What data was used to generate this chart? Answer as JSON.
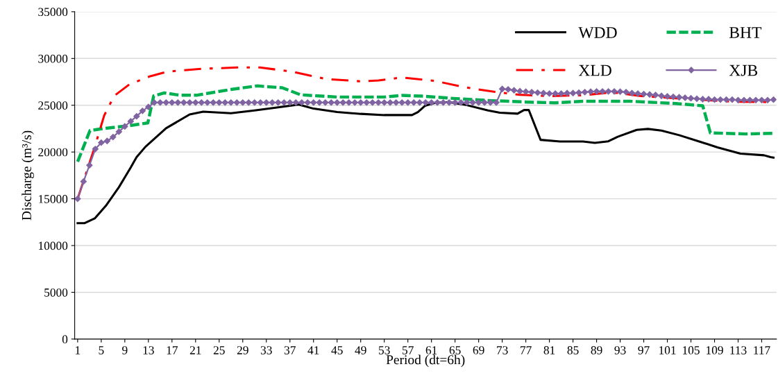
{
  "chart_data": {
    "type": "line",
    "xlabel": "Period (dt=6h)",
    "ylabel": "Discharge (m³/s)",
    "x": [
      1,
      2,
      3,
      4,
      5,
      6,
      7,
      8,
      9,
      10,
      11,
      12,
      13,
      14,
      15,
      16,
      17,
      18,
      19,
      20,
      21,
      22,
      23,
      24,
      25,
      26,
      27,
      28,
      29,
      30,
      31,
      32,
      33,
      34,
      35,
      36,
      37,
      38,
      39,
      40,
      41,
      42,
      43,
      44,
      45,
      46,
      47,
      48,
      49,
      50,
      51,
      52,
      53,
      54,
      55,
      56,
      57,
      58,
      59,
      60,
      61,
      62,
      63,
      64,
      65,
      66,
      67,
      68,
      69,
      70,
      71,
      72,
      73,
      74,
      75,
      76,
      77,
      78,
      79,
      80,
      81,
      82,
      83,
      84,
      85,
      86,
      87,
      88,
      89,
      90,
      91,
      92,
      93,
      94,
      95,
      96,
      97,
      98,
      99,
      100,
      101,
      102,
      103,
      104,
      105,
      106,
      107,
      108,
      109,
      110,
      111,
      112,
      113,
      114,
      115,
      116,
      117,
      118,
      119
    ],
    "xlim": [
      0.5,
      119.5
    ],
    "xticks": [
      1,
      5,
      9,
      13,
      17,
      21,
      25,
      29,
      33,
      37,
      41,
      45,
      49,
      53,
      57,
      61,
      65,
      69,
      73,
      77,
      81,
      85,
      89,
      93,
      97,
      101,
      105,
      109,
      113,
      117
    ],
    "ylim": [
      0,
      35000
    ],
    "yticks": [
      0,
      5000,
      10000,
      15000,
      20000,
      25000,
      30000,
      35000
    ],
    "grid": "y",
    "legend": "top right",
    "series": [
      {
        "name": "WDD",
        "color": "#000000",
        "line_style": "solid",
        "marker": "none",
        "x": [
          1,
          2.2,
          3.9,
          5.8,
          8,
          10,
          11,
          12.5,
          16,
          20,
          22.3,
          27,
          31,
          35,
          38.5,
          41,
          45,
          49,
          53,
          57.7,
          58.7,
          59.9,
          61.6,
          64,
          67,
          70.6,
          72.6,
          75.6,
          76.7,
          77.5,
          79.5,
          82.8,
          86.7,
          88.7,
          91,
          92.6,
          95.8,
          97.7,
          100,
          103,
          106.4,
          109.5,
          113.4,
          117.4,
          118.5,
          119
        ],
        "values": [
          12400,
          12400,
          12900,
          14260,
          16240,
          18340,
          19450,
          20560,
          22540,
          24020,
          24320,
          24150,
          24450,
          24770,
          25080,
          24640,
          24270,
          24080,
          23950,
          23950,
          24270,
          24940,
          25260,
          25330,
          25010,
          24450,
          24200,
          24100,
          24490,
          24500,
          21300,
          21130,
          21130,
          20980,
          21150,
          21630,
          22370,
          22470,
          22300,
          21800,
          21130,
          20490,
          19820,
          19650,
          19450,
          19400
        ]
      },
      {
        "name": "BHT",
        "color": "#00b050",
        "line_style": "dashed",
        "marker": "none",
        "x": [
          1,
          3.1,
          5.5,
          9.4,
          12.9,
          13.9,
          15.7,
          18.2,
          21.3,
          27,
          31.4,
          35.7,
          38.8,
          45,
          53,
          56,
          59.3,
          64.7,
          70.6,
          77.3,
          82,
          86.7,
          94.6,
          102.4,
          107,
          108.3,
          114.2,
          119
        ],
        "values": [
          18960,
          22300,
          22520,
          22790,
          23110,
          26000,
          26320,
          26080,
          26080,
          26690,
          27070,
          26870,
          26120,
          25880,
          25880,
          26050,
          25980,
          25730,
          25510,
          25340,
          25260,
          25430,
          25430,
          25190,
          24940,
          22050,
          21930,
          22000
        ]
      },
      {
        "name": "XLD",
        "color": "#ff0000",
        "line_style": "dashdot",
        "marker": "none",
        "x": [
          1,
          3.8,
          5.5,
          7.2,
          9.8,
          13.3,
          16.3,
          22,
          28,
          31.9,
          37.3,
          43.2,
          49,
          52,
          56,
          61.6,
          66.7,
          71.8,
          76,
          80.9,
          86.7,
          90.6,
          92.6,
          96.5,
          102.4,
          112.3,
          118.2,
          119
        ],
        "values": [
          15000,
          20320,
          23900,
          26000,
          27240,
          28100,
          28600,
          28890,
          29040,
          29040,
          28600,
          27800,
          27560,
          27650,
          27970,
          27600,
          26920,
          26420,
          26120,
          25980,
          26070,
          26320,
          26320,
          25990,
          25750,
          25380,
          25340,
          25430
        ]
      },
      {
        "name": "XJB",
        "color": "#8064a2",
        "line_style": "solid",
        "marker": "diamond",
        "values": [
          15000,
          16850,
          18580,
          20320,
          21000,
          21180,
          21600,
          22170,
          22740,
          23280,
          23820,
          24400,
          24820,
          25290,
          25290,
          25290,
          25290,
          25290,
          25290,
          25290,
          25290,
          25290,
          25290,
          25290,
          25290,
          25290,
          25290,
          25290,
          25290,
          25290,
          25290,
          25290,
          25290,
          25290,
          25290,
          25290,
          25290,
          25290,
          25290,
          25290,
          25290,
          25290,
          25290,
          25290,
          25290,
          25290,
          25290,
          25290,
          25290,
          25290,
          25290,
          25290,
          25290,
          25290,
          25290,
          25290,
          25290,
          25290,
          25290,
          25290,
          25290,
          25290,
          25290,
          25290,
          25290,
          25290,
          25290,
          25290,
          25290,
          25290,
          25290,
          25290,
          26740,
          26700,
          26600,
          26500,
          26450,
          26400,
          26350,
          26300,
          26250,
          26250,
          26250,
          26300,
          26300,
          26350,
          26400,
          26450,
          26480,
          26480,
          26480,
          26480,
          26450,
          26400,
          26300,
          26250,
          26200,
          26150,
          26100,
          26000,
          25950,
          25900,
          25850,
          25800,
          25750,
          25700,
          25650,
          25650,
          25600,
          25600,
          25600,
          25600,
          25550,
          25550,
          25550,
          25550,
          25550,
          25550,
          25600
        ]
      }
    ]
  }
}
